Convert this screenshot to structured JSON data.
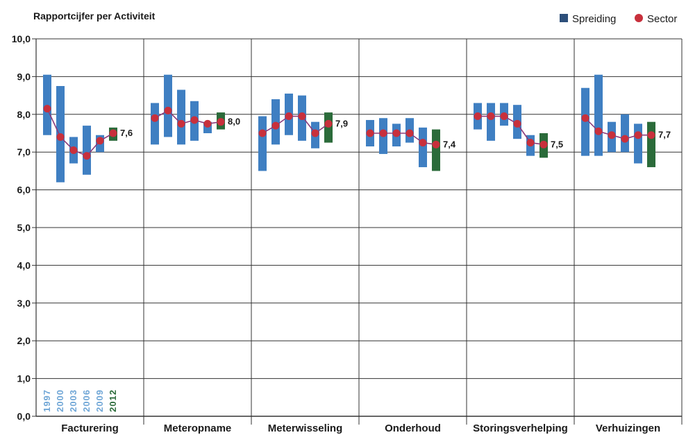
{
  "chart_data": {
    "type": "bar",
    "title": "Rapportcijfer per Activiteit",
    "legend": {
      "placement": "top-right",
      "entries": [
        "Spreiding",
        "Sector"
      ]
    },
    "ylim": [
      0,
      10
    ],
    "yticks": [
      "0,0",
      "1,0",
      "2,0",
      "3,0",
      "4,0",
      "5,0",
      "6,0",
      "7,0",
      "8,0",
      "9,0",
      "10,0"
    ],
    "years": [
      "1997",
      "2000",
      "2003",
      "2006",
      "2009",
      "2012"
    ],
    "colors": {
      "spread": "#3f7fc2",
      "spread_current": "#2b6b3a",
      "sector": "#c8303c",
      "line": "#8a3a7a",
      "grid": "#333333",
      "year_old": "#6fa6d6",
      "year_current": "#2b6b3a"
    },
    "categories": [
      {
        "name": "Facturering",
        "label": "7,6",
        "sector": [
          8.15,
          7.4,
          7.05,
          6.9,
          7.3,
          7.5
        ],
        "ranges": [
          [
            7.45,
            9.05
          ],
          [
            6.2,
            8.75
          ],
          [
            6.7,
            7.4
          ],
          [
            6.4,
            7.7
          ],
          [
            7.0,
            7.45
          ],
          [
            7.3,
            7.65
          ]
        ]
      },
      {
        "name": "Meteropname",
        "label": "8,0",
        "sector": [
          7.9,
          8.1,
          7.75,
          7.85,
          7.75,
          7.8
        ],
        "ranges": [
          [
            7.2,
            8.3
          ],
          [
            7.4,
            9.05
          ],
          [
            7.2,
            8.65
          ],
          [
            7.3,
            8.35
          ],
          [
            7.5,
            7.8
          ],
          [
            7.6,
            8.05
          ]
        ]
      },
      {
        "name": "Meterwisseling",
        "label": "7,9",
        "sector": [
          7.5,
          7.7,
          7.95,
          7.95,
          7.5,
          7.75
        ],
        "ranges": [
          [
            6.5,
            7.95
          ],
          [
            7.2,
            8.4
          ],
          [
            7.45,
            8.55
          ],
          [
            7.3,
            8.5
          ],
          [
            7.1,
            7.8
          ],
          [
            7.25,
            8.05
          ]
        ]
      },
      {
        "name": "Onderhoud",
        "label": "7,4",
        "sector": [
          7.5,
          7.5,
          7.5,
          7.5,
          7.25,
          7.2
        ],
        "ranges": [
          [
            7.15,
            7.85
          ],
          [
            6.95,
            7.9
          ],
          [
            7.15,
            7.75
          ],
          [
            7.25,
            7.9
          ],
          [
            6.6,
            7.65
          ],
          [
            6.5,
            7.6
          ]
        ]
      },
      {
        "name": "Storingsverhelping",
        "label": "7,5",
        "sector": [
          7.95,
          7.95,
          7.95,
          7.75,
          7.25,
          7.2
        ],
        "ranges": [
          [
            7.6,
            8.3
          ],
          [
            7.3,
            8.3
          ],
          [
            7.7,
            8.3
          ],
          [
            7.35,
            8.25
          ],
          [
            6.9,
            7.45
          ],
          [
            6.85,
            7.5
          ]
        ]
      },
      {
        "name": "Verhuizingen",
        "label": "7,7",
        "sector": [
          7.9,
          7.55,
          7.45,
          7.35,
          7.45,
          7.45
        ],
        "ranges": [
          [
            6.9,
            8.7
          ],
          [
            6.9,
            9.05
          ],
          [
            7.0,
            7.8
          ],
          [
            7.0,
            8.0
          ],
          [
            6.7,
            7.75
          ],
          [
            6.6,
            7.8
          ]
        ]
      }
    ]
  }
}
